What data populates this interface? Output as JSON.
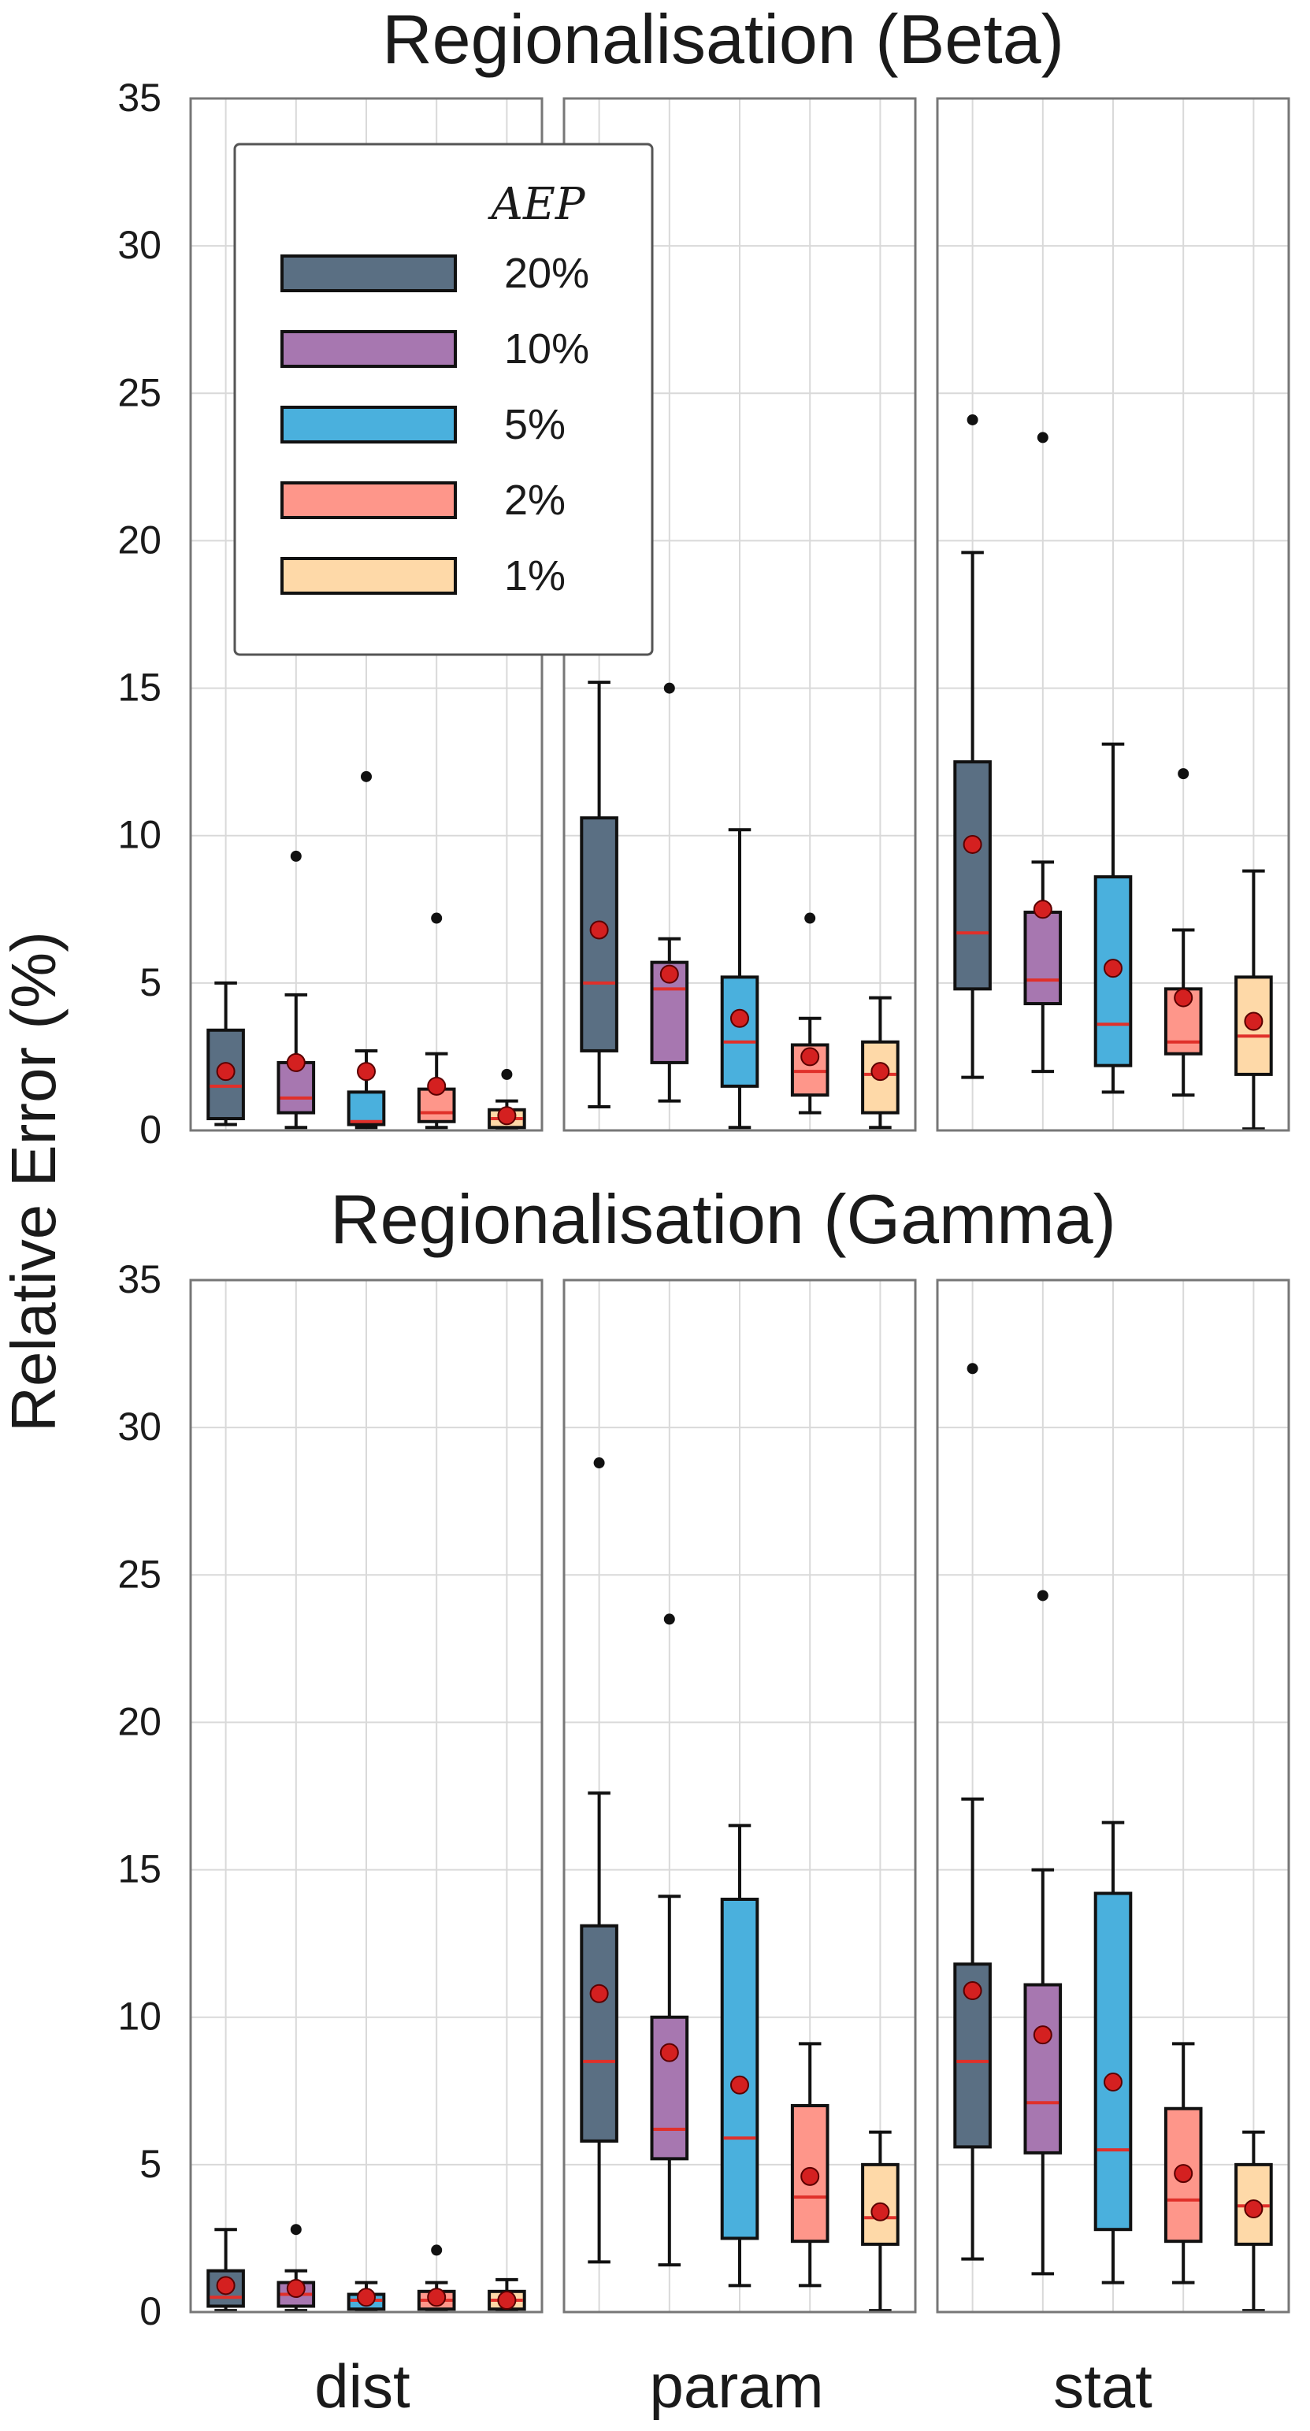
{
  "chart_data": {
    "type": "box",
    "ylabel": "Relative Error (%)",
    "ylim": [
      0,
      35
    ],
    "yticks": [
      0,
      5,
      10,
      15,
      20,
      25,
      30,
      35
    ],
    "panels": [
      "dist",
      "param",
      "stat"
    ],
    "legend": {
      "title": "AEP",
      "placement": "top-left",
      "entries": [
        {
          "label": "20%",
          "color": "#5a6f83"
        },
        {
          "label": "10%",
          "color": "#a777b0"
        },
        {
          "label": "5%",
          "color": "#4ab0dd"
        },
        {
          "label": "2%",
          "color": "#fe968a"
        },
        {
          "label": "1%",
          "color": "#fed9a8"
        }
      ]
    },
    "median_color": "#e0302a",
    "mean_marker_color": "#d42020",
    "grid": true,
    "rows": [
      {
        "title": "Regionalisation (Beta)",
        "groups": {
          "dist": [
            {
              "aep": "20%",
              "whislo": 0.2,
              "q1": 0.4,
              "med": 1.5,
              "q3": 3.4,
              "whishi": 5.0,
              "mean": 2.0,
              "fliers": []
            },
            {
              "aep": "10%",
              "whislo": 0.1,
              "q1": 0.6,
              "med": 1.1,
              "q3": 2.3,
              "whishi": 4.6,
              "mean": 2.3,
              "fliers": [
                9.3
              ]
            },
            {
              "aep": "5%",
              "whislo": 0.1,
              "q1": 0.2,
              "med": 0.3,
              "q3": 1.3,
              "whishi": 2.7,
              "mean": 2.0,
              "fliers": [
                12.0
              ]
            },
            {
              "aep": "2%",
              "whislo": 0.1,
              "q1": 0.3,
              "med": 0.6,
              "q3": 1.4,
              "whishi": 2.6,
              "mean": 1.5,
              "fliers": [
                7.2
              ]
            },
            {
              "aep": "1%",
              "whislo": 0.05,
              "q1": 0.1,
              "med": 0.4,
              "q3": 0.7,
              "whishi": 1.0,
              "mean": 0.5,
              "fliers": [
                1.9
              ]
            }
          ],
          "param": [
            {
              "aep": "20%",
              "whislo": 0.8,
              "q1": 2.7,
              "med": 5.0,
              "q3": 10.6,
              "whishi": 15.2,
              "mean": 6.8,
              "fliers": []
            },
            {
              "aep": "10%",
              "whislo": 1.0,
              "q1": 2.3,
              "med": 4.8,
              "q3": 5.7,
              "whishi": 6.5,
              "mean": 5.3,
              "fliers": [
                15.0
              ]
            },
            {
              "aep": "5%",
              "whislo": 0.1,
              "q1": 1.5,
              "med": 3.0,
              "q3": 5.2,
              "whishi": 10.2,
              "mean": 3.8,
              "fliers": []
            },
            {
              "aep": "2%",
              "whislo": 0.6,
              "q1": 1.2,
              "med": 2.0,
              "q3": 2.9,
              "whishi": 3.8,
              "mean": 2.5,
              "fliers": [
                7.2
              ]
            },
            {
              "aep": "1%",
              "whislo": 0.1,
              "q1": 0.6,
              "med": 1.9,
              "q3": 3.0,
              "whishi": 4.5,
              "mean": 2.0,
              "fliers": []
            }
          ],
          "stat": [
            {
              "aep": "20%",
              "whislo": 1.8,
              "q1": 4.8,
              "med": 6.7,
              "q3": 12.5,
              "whishi": 19.6,
              "mean": 9.7,
              "fliers": [
                24.1
              ]
            },
            {
              "aep": "10%",
              "whislo": 2.0,
              "q1": 4.3,
              "med": 5.1,
              "q3": 7.4,
              "whishi": 9.1,
              "mean": 7.5,
              "fliers": [
                23.5
              ]
            },
            {
              "aep": "5%",
              "whislo": 1.3,
              "q1": 2.2,
              "med": 3.6,
              "q3": 8.6,
              "whishi": 13.1,
              "mean": 5.5,
              "fliers": []
            },
            {
              "aep": "2%",
              "whislo": 1.2,
              "q1": 2.6,
              "med": 3.0,
              "q3": 4.8,
              "whishi": 6.8,
              "mean": 4.5,
              "fliers": [
                12.1
              ]
            },
            {
              "aep": "1%",
              "whislo": 0.05,
              "q1": 1.9,
              "med": 3.2,
              "q3": 5.2,
              "whishi": 8.8,
              "mean": 3.7,
              "fliers": []
            }
          ]
        }
      },
      {
        "title": "Regionalisation (Gamma)",
        "groups": {
          "dist": [
            {
              "aep": "20%",
              "whislo": 0.05,
              "q1": 0.2,
              "med": 0.5,
              "q3": 1.4,
              "whishi": 2.8,
              "mean": 0.9,
              "fliers": []
            },
            {
              "aep": "10%",
              "whislo": 0.05,
              "q1": 0.2,
              "med": 0.6,
              "q3": 1.0,
              "whishi": 1.4,
              "mean": 0.8,
              "fliers": [
                2.8
              ]
            },
            {
              "aep": "5%",
              "whislo": 0.05,
              "q1": 0.1,
              "med": 0.4,
              "q3": 0.6,
              "whishi": 1.0,
              "mean": 0.5,
              "fliers": []
            },
            {
              "aep": "2%",
              "whislo": 0.05,
              "q1": 0.1,
              "med": 0.4,
              "q3": 0.7,
              "whishi": 1.0,
              "mean": 0.5,
              "fliers": [
                2.1
              ]
            },
            {
              "aep": "1%",
              "whislo": 0.05,
              "q1": 0.1,
              "med": 0.4,
              "q3": 0.7,
              "whishi": 1.1,
              "mean": 0.4,
              "fliers": []
            }
          ],
          "param": [
            {
              "aep": "20%",
              "whislo": 1.7,
              "q1": 5.8,
              "med": 8.5,
              "q3": 13.1,
              "whishi": 17.6,
              "mean": 10.8,
              "fliers": [
                28.8
              ]
            },
            {
              "aep": "10%",
              "whislo": 1.6,
              "q1": 5.2,
              "med": 6.2,
              "q3": 10.0,
              "whishi": 14.1,
              "mean": 8.8,
              "fliers": [
                23.5
              ]
            },
            {
              "aep": "5%",
              "whislo": 0.9,
              "q1": 2.5,
              "med": 5.9,
              "q3": 14.0,
              "whishi": 16.5,
              "mean": 7.7,
              "fliers": []
            },
            {
              "aep": "2%",
              "whislo": 0.9,
              "q1": 2.4,
              "med": 3.9,
              "q3": 7.0,
              "whishi": 9.1,
              "mean": 4.6,
              "fliers": []
            },
            {
              "aep": "1%",
              "whislo": 0.05,
              "q1": 2.3,
              "med": 3.2,
              "q3": 5.0,
              "whishi": 6.1,
              "mean": 3.4,
              "fliers": []
            }
          ],
          "stat": [
            {
              "aep": "20%",
              "whislo": 1.8,
              "q1": 5.6,
              "med": 8.5,
              "q3": 11.8,
              "whishi": 17.4,
              "mean": 10.9,
              "fliers": [
                32.0
              ]
            },
            {
              "aep": "10%",
              "whislo": 1.3,
              "q1": 5.4,
              "med": 7.1,
              "q3": 11.1,
              "whishi": 15.0,
              "mean": 9.4,
              "fliers": [
                24.3
              ]
            },
            {
              "aep": "5%",
              "whislo": 1.0,
              "q1": 2.8,
              "med": 5.5,
              "q3": 14.2,
              "whishi": 16.6,
              "mean": 7.8,
              "fliers": []
            },
            {
              "aep": "2%",
              "whislo": 1.0,
              "q1": 2.4,
              "med": 3.8,
              "q3": 6.9,
              "whishi": 9.1,
              "mean": 4.7,
              "fliers": []
            },
            {
              "aep": "1%",
              "whislo": 0.05,
              "q1": 2.3,
              "med": 3.6,
              "q3": 5.0,
              "whishi": 6.1,
              "mean": 3.5,
              "fliers": []
            }
          ]
        }
      }
    ]
  }
}
